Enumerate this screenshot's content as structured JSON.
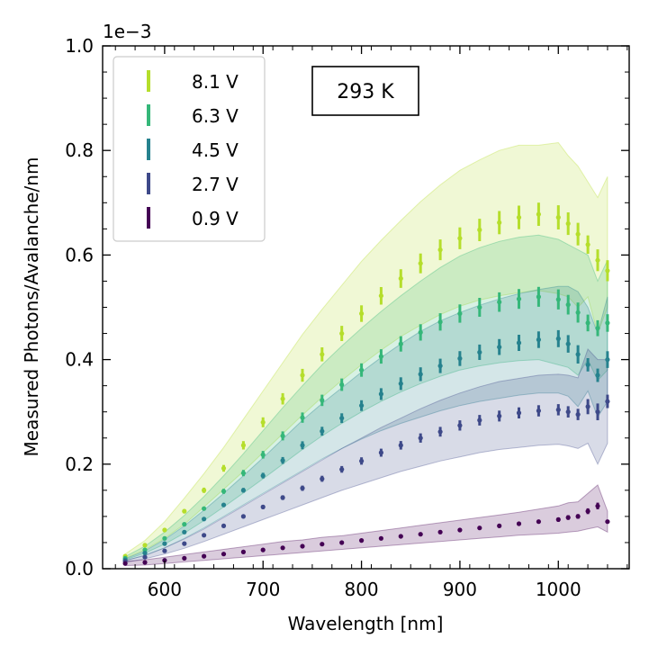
{
  "chart_data": {
    "type": "scatter",
    "title": "",
    "xlabel": "Wavelength [nm]",
    "ylabel": "Measured Photons/Avalanche/nm",
    "y_offset_label": "1e−3",
    "xlim": [
      537,
      1072
    ],
    "ylim": [
      0.0,
      1.0
    ],
    "y_scale_factor": 0.001,
    "x_ticks": [
      600,
      700,
      800,
      900,
      1000
    ],
    "x_tick_labels": [
      "600",
      "700",
      "800",
      "900",
      "1000"
    ],
    "y_ticks": [
      0.0,
      0.2,
      0.4,
      0.6,
      0.8,
      1.0
    ],
    "y_tick_labels": [
      "0.0",
      "0.2",
      "0.4",
      "0.6",
      "0.8",
      "1.0"
    ],
    "grid": false,
    "legend_position": "top-left",
    "annotation": "293 K",
    "x": [
      560,
      580,
      600,
      620,
      640,
      660,
      680,
      700,
      720,
      740,
      760,
      780,
      800,
      820,
      840,
      860,
      880,
      900,
      920,
      940,
      960,
      980,
      1000,
      1010,
      1020,
      1030,
      1040,
      1050
    ],
    "series": [
      {
        "name": "8.1 V",
        "color": "#b5de2b",
        "values": [
          0.024,
          0.045,
          0.074,
          0.11,
          0.15,
          0.192,
          0.236,
          0.28,
          0.325,
          0.37,
          0.41,
          0.45,
          0.488,
          0.522,
          0.555,
          0.584,
          0.61,
          0.632,
          0.648,
          0.662,
          0.672,
          0.678,
          0.672,
          0.66,
          0.64,
          0.62,
          0.59,
          0.57
        ],
        "band_low": [
          0.02,
          0.036,
          0.058,
          0.085,
          0.118,
          0.152,
          0.186,
          0.222,
          0.258,
          0.294,
          0.328,
          0.36,
          0.39,
          0.418,
          0.444,
          0.466,
          0.486,
          0.502,
          0.514,
          0.522,
          0.528,
          0.532,
          0.526,
          0.52,
          0.5,
          0.52,
          0.45,
          0.5
        ],
        "band_high": [
          0.028,
          0.054,
          0.09,
          0.135,
          0.182,
          0.232,
          0.286,
          0.34,
          0.394,
          0.448,
          0.496,
          0.542,
          0.588,
          0.628,
          0.666,
          0.702,
          0.734,
          0.762,
          0.782,
          0.8,
          0.81,
          0.81,
          0.815,
          0.79,
          0.77,
          0.74,
          0.71,
          0.75
        ]
      },
      {
        "name": "6.3 V",
        "color": "#35b779",
        "values": [
          0.02,
          0.036,
          0.058,
          0.085,
          0.115,
          0.148,
          0.183,
          0.218,
          0.254,
          0.289,
          0.322,
          0.352,
          0.38,
          0.406,
          0.43,
          0.452,
          0.472,
          0.488,
          0.5,
          0.51,
          0.516,
          0.52,
          0.515,
          0.505,
          0.49,
          0.47,
          0.46,
          0.47
        ],
        "band_low": [
          0.017,
          0.03,
          0.047,
          0.068,
          0.092,
          0.118,
          0.145,
          0.172,
          0.2,
          0.228,
          0.254,
          0.278,
          0.3,
          0.32,
          0.338,
          0.354,
          0.368,
          0.38,
          0.388,
          0.394,
          0.398,
          0.4,
          0.39,
          0.385,
          0.37,
          0.4,
          0.36,
          0.38
        ],
        "band_high": [
          0.023,
          0.043,
          0.07,
          0.102,
          0.138,
          0.178,
          0.22,
          0.264,
          0.308,
          0.35,
          0.39,
          0.426,
          0.46,
          0.492,
          0.522,
          0.55,
          0.576,
          0.598,
          0.614,
          0.626,
          0.634,
          0.638,
          0.63,
          0.62,
          0.61,
          0.6,
          0.55,
          0.59
        ]
      },
      {
        "name": "4.5 V",
        "color": "#26828e",
        "values": [
          0.017,
          0.03,
          0.048,
          0.07,
          0.095,
          0.122,
          0.15,
          0.178,
          0.207,
          0.236,
          0.263,
          0.288,
          0.312,
          0.334,
          0.354,
          0.372,
          0.388,
          0.402,
          0.414,
          0.424,
          0.432,
          0.438,
          0.44,
          0.43,
          0.41,
          0.39,
          0.37,
          0.4
        ],
        "band_low": [
          0.015,
          0.026,
          0.04,
          0.058,
          0.078,
          0.1,
          0.122,
          0.144,
          0.166,
          0.188,
          0.21,
          0.23,
          0.248,
          0.264,
          0.278,
          0.29,
          0.302,
          0.312,
          0.32,
          0.326,
          0.332,
          0.336,
          0.336,
          0.33,
          0.31,
          0.34,
          0.29,
          0.32
        ],
        "band_high": [
          0.019,
          0.034,
          0.056,
          0.082,
          0.112,
          0.144,
          0.178,
          0.212,
          0.248,
          0.284,
          0.316,
          0.346,
          0.376,
          0.404,
          0.43,
          0.454,
          0.474,
          0.49,
          0.504,
          0.516,
          0.526,
          0.534,
          0.54,
          0.54,
          0.53,
          0.5,
          0.45,
          0.52
        ]
      },
      {
        "name": "2.7 V",
        "color": "#3e4989",
        "values": [
          0.014,
          0.022,
          0.034,
          0.048,
          0.064,
          0.082,
          0.1,
          0.118,
          0.136,
          0.154,
          0.172,
          0.19,
          0.206,
          0.222,
          0.236,
          0.25,
          0.262,
          0.274,
          0.284,
          0.292,
          0.298,
          0.302,
          0.304,
          0.3,
          0.295,
          0.31,
          0.3,
          0.32
        ],
        "band_low": [
          0.012,
          0.019,
          0.028,
          0.039,
          0.052,
          0.066,
          0.08,
          0.094,
          0.108,
          0.122,
          0.136,
          0.15,
          0.162,
          0.174,
          0.186,
          0.196,
          0.206,
          0.214,
          0.222,
          0.228,
          0.232,
          0.236,
          0.238,
          0.235,
          0.23,
          0.24,
          0.2,
          0.24
        ],
        "band_high": [
          0.016,
          0.025,
          0.04,
          0.057,
          0.076,
          0.098,
          0.12,
          0.142,
          0.164,
          0.186,
          0.208,
          0.23,
          0.25,
          0.27,
          0.288,
          0.306,
          0.322,
          0.336,
          0.348,
          0.358,
          0.364,
          0.37,
          0.372,
          0.37,
          0.365,
          0.42,
          0.4,
          0.4
        ]
      },
      {
        "name": "0.9 V",
        "color": "#440154",
        "values": [
          0.01,
          0.012,
          0.016,
          0.02,
          0.024,
          0.028,
          0.032,
          0.036,
          0.04,
          0.043,
          0.047,
          0.05,
          0.054,
          0.058,
          0.062,
          0.066,
          0.07,
          0.074,
          0.078,
          0.082,
          0.086,
          0.09,
          0.094,
          0.098,
          0.1,
          0.11,
          0.12,
          0.09
        ],
        "band_low": [
          0.006,
          0.007,
          0.01,
          0.013,
          0.016,
          0.019,
          0.022,
          0.025,
          0.028,
          0.031,
          0.034,
          0.037,
          0.04,
          0.043,
          0.046,
          0.049,
          0.052,
          0.055,
          0.058,
          0.061,
          0.064,
          0.066,
          0.068,
          0.07,
          0.072,
          0.076,
          0.08,
          0.07
        ],
        "band_high": [
          0.014,
          0.017,
          0.022,
          0.027,
          0.032,
          0.037,
          0.042,
          0.047,
          0.052,
          0.055,
          0.06,
          0.063,
          0.068,
          0.073,
          0.078,
          0.083,
          0.088,
          0.093,
          0.098,
          0.103,
          0.108,
          0.114,
          0.12,
          0.126,
          0.128,
          0.144,
          0.16,
          0.11
        ]
      }
    ]
  }
}
